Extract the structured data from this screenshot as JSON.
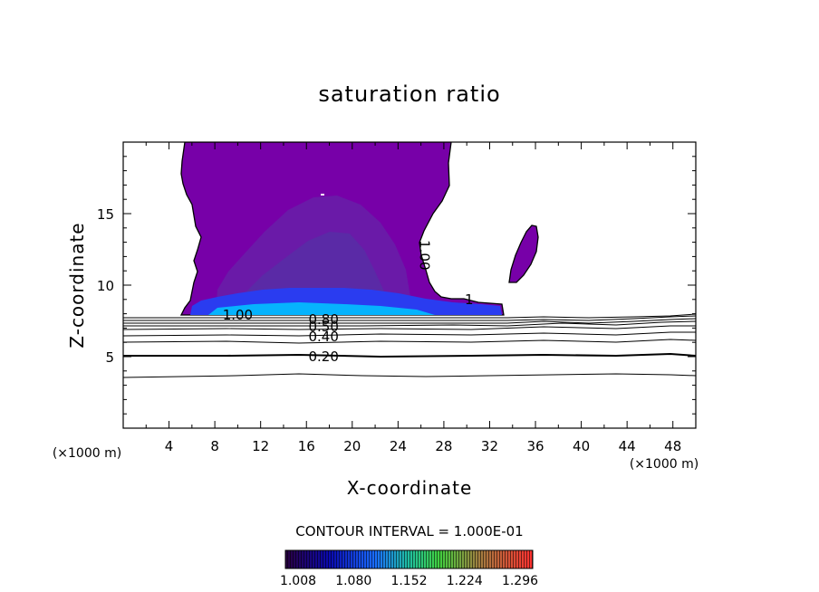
{
  "chart_data": {
    "type": "contour",
    "title": "saturation ratio",
    "xlabel": "X-coordinate",
    "ylabel": "Z-coordinate",
    "x_unit_left": "(×1000 m)",
    "x_unit_right": "(×1000 m)",
    "xlim": [
      0,
      50
    ],
    "ylim": [
      0,
      20
    ],
    "x_ticks": [
      4,
      8,
      12,
      16,
      20,
      24,
      28,
      32,
      36,
      40,
      44,
      48
    ],
    "y_ticks": [
      5,
      10,
      15
    ],
    "grid": false,
    "contour_interval_label": "CONTOUR INTERVAL = 1.000E-01",
    "contour_levels": [
      0.2,
      0.4,
      0.5,
      0.6,
      0.8,
      1.0
    ],
    "contour_labels": [
      {
        "text": "0.20",
        "x": 17.5,
        "y": 5.0
      },
      {
        "text": "0.40",
        "x": 17.5,
        "y": 6.4
      },
      {
        "text": "0.50",
        "x": 17.5,
        "y": 7.1
      },
      {
        "text": "0.80",
        "x": 17.5,
        "y": 7.6
      },
      {
        "text": "1.00",
        "x": 10.0,
        "y": 7.9
      },
      {
        "text": "1.00",
        "x": 26.3,
        "y": 12.1
      },
      {
        "text": "1",
        "x": 30.2,
        "y": 9.0
      }
    ],
    "supersaturated_region": {
      "color": "#7700a8",
      "x_range": [
        5,
        33
      ],
      "z_range": [
        8,
        20
      ]
    },
    "anvil_blob": {
      "x": 34.5,
      "z": 12.2
    },
    "colorbar": {
      "ticks": [
        "1.008",
        "1.080",
        "1.152",
        "1.224",
        "1.296"
      ],
      "min": 1.008,
      "max": 1.296
    }
  },
  "colors": {
    "fill_purple": "#7700a8",
    "fill_mid": "#6a1aa8",
    "fill_deep": "#5a2aa6",
    "fill_blue": "#2a3cf0",
    "fill_cyan": "#00c8ff"
  }
}
